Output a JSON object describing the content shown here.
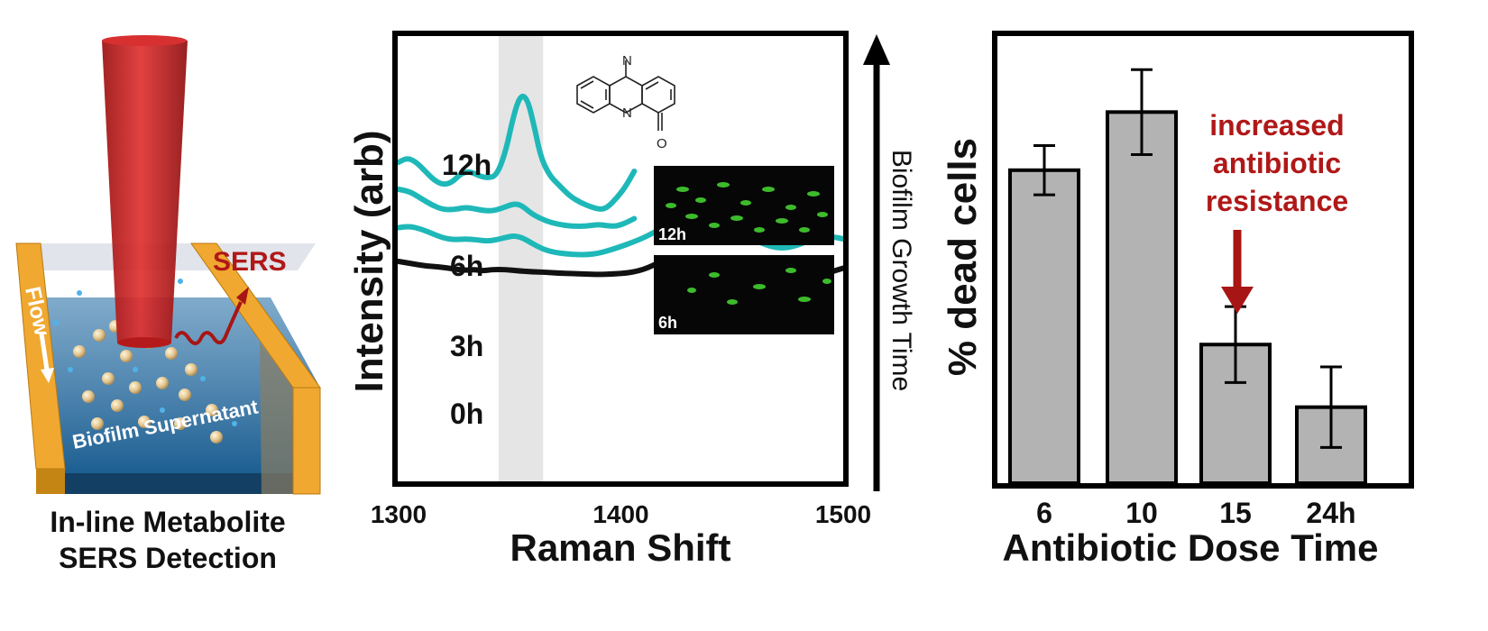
{
  "left_panel": {
    "caption_line1": "In-line Metabolite",
    "caption_line2": "SERS Detection",
    "sers_label": "SERS",
    "flow_label": "Flow",
    "supernatant_label": "Biofilm Supernatant",
    "colors": {
      "channel": "#f0a830",
      "laser": "#c21b1b",
      "liquid": "#1f6fa3",
      "particles": "#e2c38c",
      "sers": "#b01818"
    }
  },
  "chart_data": [
    {
      "type": "line",
      "xlabel": "Raman Shift",
      "ylabel": "Intensity (arb)",
      "xlim": [
        1300,
        1500
      ],
      "x_ticks": [
        "1300",
        "1400",
        "1500"
      ],
      "highlight_band": [
        1345,
        1365
      ],
      "series": [
        {
          "name": "12h",
          "color": "#1fb8b8",
          "points": [
            [
              1300,
              0.72
            ],
            [
              1304,
              0.73
            ],
            [
              1308,
              0.72
            ],
            [
              1312,
              0.7
            ],
            [
              1316,
              0.68
            ],
            [
              1320,
              0.67
            ],
            [
              1324,
              0.675
            ],
            [
              1328,
              0.695
            ],
            [
              1332,
              0.7
            ],
            [
              1336,
              0.69
            ],
            [
              1340,
              0.685
            ],
            [
              1344,
              0.69
            ],
            [
              1348,
              0.74
            ],
            [
              1352,
              0.83
            ],
            [
              1355,
              0.87
            ],
            [
              1358,
              0.86
            ],
            [
              1361,
              0.8
            ],
            [
              1364,
              0.73
            ],
            [
              1368,
              0.69
            ],
            [
              1372,
              0.67
            ],
            [
              1377,
              0.645
            ],
            [
              1382,
              0.63
            ],
            [
              1387,
              0.62
            ],
            [
              1391,
              0.615
            ],
            [
              1394,
              0.62
            ],
            [
              1398,
              0.64
            ],
            [
              1402,
              0.665
            ],
            [
              1406,
              0.7
            ]
          ]
        },
        {
          "name": "6h",
          "color": "#1fb8b8",
          "points": [
            [
              1300,
              0.66
            ],
            [
              1305,
              0.655
            ],
            [
              1310,
              0.64
            ],
            [
              1315,
              0.625
            ],
            [
              1320,
              0.615
            ],
            [
              1325,
              0.615
            ],
            [
              1330,
              0.62
            ],
            [
              1334,
              0.617
            ],
            [
              1338,
              0.613
            ],
            [
              1342,
              0.612
            ],
            [
              1346,
              0.617
            ],
            [
              1350,
              0.625
            ],
            [
              1353,
              0.628
            ],
            [
              1356,
              0.622
            ],
            [
              1360,
              0.605
            ],
            [
              1366,
              0.59
            ],
            [
              1372,
              0.582
            ],
            [
              1378,
              0.578
            ],
            [
              1384,
              0.578
            ],
            [
              1390,
              0.582
            ],
            [
              1394,
              0.579
            ],
            [
              1398,
              0.578
            ],
            [
              1402,
              0.585
            ],
            [
              1406,
              0.595
            ]
          ]
        },
        {
          "name": "3h",
          "color": "#1fb8b8",
          "points": [
            [
              1300,
              0.575
            ],
            [
              1305,
              0.578
            ],
            [
              1310,
              0.572
            ],
            [
              1315,
              0.562
            ],
            [
              1320,
              0.552
            ],
            [
              1325,
              0.548
            ],
            [
              1330,
              0.55
            ],
            [
              1335,
              0.548
            ],
            [
              1340,
              0.545
            ],
            [
              1344,
              0.548
            ],
            [
              1348,
              0.553
            ],
            [
              1352,
              0.557
            ],
            [
              1356,
              0.552
            ],
            [
              1360,
              0.54
            ],
            [
              1365,
              0.527
            ],
            [
              1370,
              0.52
            ],
            [
              1375,
              0.517
            ],
            [
              1380,
              0.515
            ],
            [
              1385,
              0.515
            ],
            [
              1390,
              0.518
            ],
            [
              1395,
              0.525
            ],
            [
              1400,
              0.533
            ],
            [
              1405,
              0.542
            ],
            [
              1410,
              0.552
            ],
            [
              1414,
              0.562
            ],
            [
              1418,
              0.572
            ],
            [
              1422,
              0.575
            ],
            [
              1426,
              0.57
            ],
            [
              1430,
              0.564
            ],
            [
              1435,
              0.566
            ],
            [
              1440,
              0.574
            ],
            [
              1445,
              0.577
            ],
            [
              1450,
              0.573
            ],
            [
              1455,
              0.56
            ],
            [
              1460,
              0.548
            ],
            [
              1465,
              0.537
            ],
            [
              1470,
              0.53
            ],
            [
              1475,
              0.53
            ],
            [
              1480,
              0.537
            ],
            [
              1485,
              0.547
            ],
            [
              1490,
              0.553
            ],
            [
              1495,
              0.555
            ],
            [
              1500,
              0.55
            ]
          ]
        },
        {
          "name": "0h",
          "color": "#111111",
          "points": [
            [
              1300,
              0.5
            ],
            [
              1306,
              0.495
            ],
            [
              1312,
              0.49
            ],
            [
              1318,
              0.488
            ],
            [
              1324,
              0.484
            ],
            [
              1330,
              0.48
            ],
            [
              1334,
              0.482
            ],
            [
              1338,
              0.479
            ],
            [
              1342,
              0.482
            ],
            [
              1348,
              0.482
            ],
            [
              1354,
              0.479
            ],
            [
              1360,
              0.477
            ],
            [
              1366,
              0.476
            ],
            [
              1372,
              0.474
            ],
            [
              1378,
              0.473
            ],
            [
              1384,
              0.472
            ],
            [
              1390,
              0.471
            ],
            [
              1396,
              0.472
            ],
            [
              1402,
              0.474
            ],
            [
              1406,
              0.477
            ],
            [
              1410,
              0.482
            ],
            [
              1414,
              0.49
            ],
            [
              1418,
              0.5
            ],
            [
              1422,
              0.504
            ],
            [
              1426,
              0.502
            ],
            [
              1430,
              0.497
            ],
            [
              1434,
              0.497
            ],
            [
              1438,
              0.502
            ],
            [
              1442,
              0.506
            ],
            [
              1446,
              0.507
            ],
            [
              1450,
              0.502
            ],
            [
              1454,
              0.492
            ],
            [
              1458,
              0.482
            ],
            [
              1462,
              0.474
            ],
            [
              1466,
              0.47
            ],
            [
              1470,
              0.466
            ],
            [
              1474,
              0.468
            ],
            [
              1478,
              0.472
            ],
            [
              1482,
              0.473
            ],
            [
              1486,
              0.473
            ],
            [
              1490,
              0.472
            ],
            [
              1494,
              0.476
            ],
            [
              1498,
              0.482
            ],
            [
              1500,
              0.485
            ]
          ]
        }
      ],
      "arrow_label": "Biofilm Growth Time",
      "inset_labels": [
        "12h",
        "6h"
      ]
    },
    {
      "type": "bar",
      "xlabel": "Antibiotic Dose Time",
      "ylabel": "% dead cells",
      "categories": [
        "6",
        "10",
        "15",
        "24h"
      ],
      "values": [
        70,
        83,
        31,
        17
      ],
      "errors": [
        5.5,
        9.5,
        8.5,
        9
      ],
      "ylim": [
        0,
        100
      ],
      "bar_color": "#b3b3b3",
      "annotation": {
        "lines": [
          "increased",
          "antibiotic",
          "resistance"
        ],
        "color": "#b01818",
        "target_category": "15"
      }
    }
  ]
}
